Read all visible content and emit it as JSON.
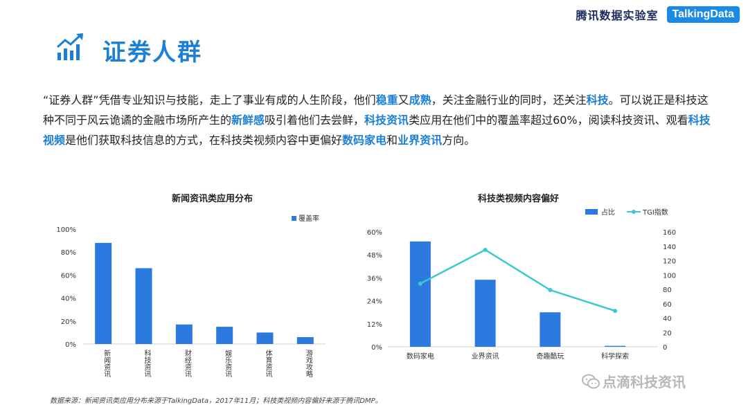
{
  "header": {
    "lab_name": "腾讯数据实验室",
    "logo_text": "TalkingData"
  },
  "title": "证券人群",
  "intro": [
    {
      "text": "“证券人群”凭借专业知识与技能，走上了事业有成的人生阶段，他们",
      "hl": false
    },
    {
      "text": "稳重",
      "hl": true
    },
    {
      "text": "又",
      "hl": false
    },
    {
      "text": "成熟",
      "hl": true
    },
    {
      "text": "，关注金融行业的同时，还关注",
      "hl": false
    },
    {
      "text": "科技",
      "hl": true
    },
    {
      "text": "。可以说正是科技这种不同于风云诡谲的金融市场所产生的",
      "hl": false
    },
    {
      "text": "新鲜感",
      "hl": true
    },
    {
      "text": "吸引着他们去尝鲜，",
      "hl": false
    },
    {
      "text": "科技资讯",
      "hl": true
    },
    {
      "text": "类应用在他们中的覆盖率超过60%，阅读科技资讯、观看",
      "hl": false
    },
    {
      "text": "科技视频",
      "hl": true
    },
    {
      "text": "是他们获取科技信息的方式，在科技类视频内容中更偏好",
      "hl": false
    },
    {
      "text": "数码家电",
      "hl": true
    },
    {
      "text": "和",
      "hl": false
    },
    {
      "text": "业界资讯",
      "hl": true
    },
    {
      "text": "方向。",
      "hl": false
    }
  ],
  "colors": {
    "accent": "#1b7fd6",
    "bar": "#2c7ae0",
    "line": "#3cc8cc",
    "axis": "#d0d0d0"
  },
  "icons": {
    "title": "growth-chart-icon",
    "watermark": "wechat-icon"
  },
  "chart_data": [
    {
      "type": "bar",
      "title": "新闻资讯类应用分布",
      "categories": [
        "新闻资讯",
        "科技资讯",
        "财经资讯",
        "娱乐资讯",
        "体育资讯",
        "游戏攻略"
      ],
      "series": [
        {
          "name": "覆盖率",
          "values": [
            88,
            66,
            17,
            15,
            10,
            6
          ]
        }
      ],
      "ylim": [
        0,
        100
      ],
      "yticks": [
        0,
        20,
        40,
        60,
        80,
        100
      ],
      "ytick_labels": [
        "0%",
        "20%",
        "40%",
        "60%",
        "80%",
        "100%"
      ],
      "legend": "top-right",
      "grid": false
    },
    {
      "type": "bar",
      "title": "科技类视频内容偏好",
      "categories": [
        "数码家电",
        "业界资讯",
        "奇趣酷玩",
        "科学探索"
      ],
      "series": [
        {
          "name": "占比",
          "type": "bar",
          "axis": "left",
          "values": [
            55,
            35,
            18,
            0.5
          ]
        },
        {
          "name": "TGI指数",
          "type": "line",
          "axis": "right",
          "values": [
            88,
            135,
            79,
            50
          ]
        }
      ],
      "ylim": [
        0,
        60
      ],
      "yticks": [
        0,
        12,
        24,
        36,
        48,
        60
      ],
      "ytick_labels": [
        "0%",
        "12%",
        "24%",
        "36%",
        "48%",
        "60%"
      ],
      "y2lim": [
        0,
        160
      ],
      "y2ticks": [
        0,
        20,
        40,
        60,
        80,
        100,
        120,
        140,
        160
      ],
      "y2tick_labels": [
        "0",
        "20",
        "40",
        "60",
        "80",
        "100",
        "120",
        "140",
        "160"
      ],
      "legend": "top-right",
      "grid": false
    }
  ],
  "source": "数据来源：新闻资讯类应用分布来源于TalkingData，2017年11月；科技类视频内容偏好来源于腾讯DMP。",
  "watermark": "点滴科技资讯"
}
